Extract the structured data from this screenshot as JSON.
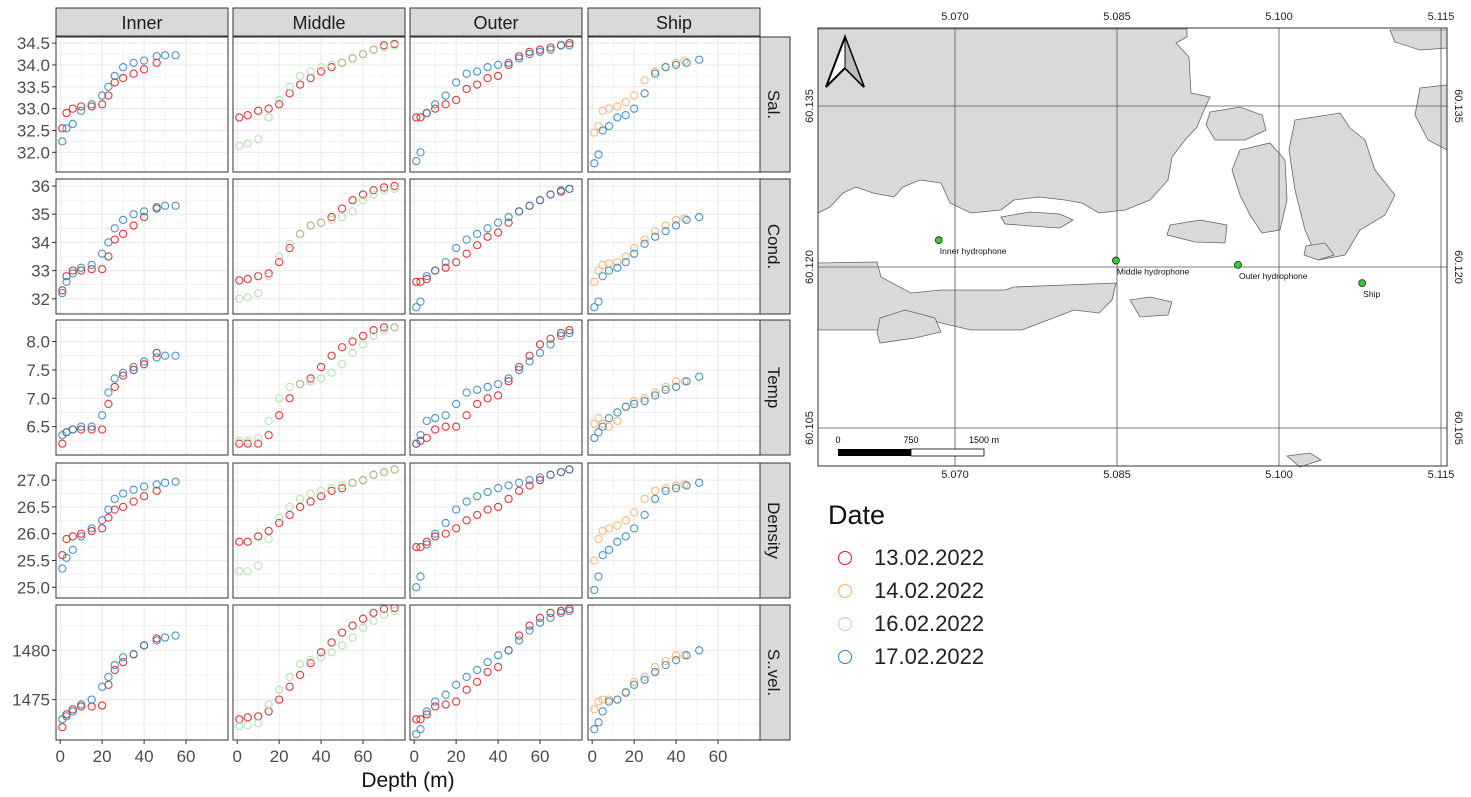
{
  "chart_data": [
    {
      "type": "scatter",
      "xlabel": "Depth (m)",
      "xlim": [
        -2,
        80
      ],
      "xticks": [
        0,
        20,
        40,
        60
      ],
      "grid": true,
      "columns": [
        "Inner",
        "Middle",
        "Outer",
        "Ship"
      ],
      "rows": [
        {
          "key": "sal",
          "label": "Sal.",
          "ylim": [
            31.55,
            34.64
          ],
          "yticks": [
            "32.0",
            "32.5",
            "33.0",
            "33.5",
            "34.0",
            "34.5"
          ]
        },
        {
          "key": "cond",
          "label": "Cond.",
          "ylim": [
            31.46,
            36.25
          ],
          "yticks": [
            "32",
            "33",
            "34",
            "35",
            "36"
          ]
        },
        {
          "key": "temp",
          "label": "Temp",
          "ylim": [
            6.0,
            8.38
          ],
          "yticks": [
            "6.5",
            "7.0",
            "7.5",
            "8.0"
          ]
        },
        {
          "key": "density",
          "label": "Density",
          "ylim": [
            24.8,
            27.32
          ],
          "yticks": [
            "25.0",
            "25.5",
            "26.0",
            "26.5",
            "27.0"
          ]
        },
        {
          "key": "svel",
          "label": "S..vel.",
          "ylim": [
            1470.9,
            1484.6
          ],
          "yticks": [
            "1475",
            "1480"
          ]
        }
      ],
      "legend": {
        "title": "Date",
        "placement": "right",
        "entries": [
          {
            "label": "13.02.2022",
            "color": "#d7191c"
          },
          {
            "label": "14.02.2022",
            "color": "#fdae61"
          },
          {
            "label": "16.02.2022",
            "color": "#abdda4"
          },
          {
            "label": "17.02.2022",
            "color": "#2b83ba"
          }
        ]
      },
      "series": [
        {
          "column": "Inner",
          "date": "13.02.2022",
          "depth": [
            1,
            3,
            6,
            10,
            15,
            20,
            23,
            26,
            30,
            35,
            40,
            46
          ],
          "sal": [
            32.55,
            32.9,
            33.0,
            33.05,
            33.05,
            33.1,
            33.3,
            33.6,
            33.7,
            33.8,
            33.9,
            34.05
          ],
          "cond": [
            32.3,
            32.8,
            33.0,
            33.0,
            33.05,
            33.05,
            33.5,
            34.1,
            34.3,
            34.6,
            34.9,
            35.2
          ],
          "temp": [
            6.2,
            6.4,
            6.45,
            6.45,
            6.45,
            6.45,
            6.9,
            7.2,
            7.4,
            7.5,
            7.6,
            7.8
          ],
          "density": [
            25.6,
            25.9,
            25.95,
            26.0,
            26.05,
            26.1,
            26.3,
            26.45,
            26.5,
            26.6,
            26.7,
            26.8
          ],
          "svel": [
            1472.2,
            1473.5,
            1474.0,
            1474.3,
            1474.3,
            1474.4,
            1476.5,
            1478.0,
            1478.8,
            1479.6,
            1480.5,
            1481.2
          ]
        },
        {
          "column": "Inner",
          "date": "17.02.2022",
          "depth": [
            1,
            3,
            6,
            10,
            15,
            20,
            23,
            26,
            30,
            35,
            40,
            46,
            50,
            55
          ],
          "sal": [
            32.25,
            32.55,
            32.65,
            32.95,
            33.1,
            33.3,
            33.5,
            33.75,
            33.95,
            34.05,
            34.1,
            34.2,
            34.22,
            34.22
          ],
          "cond": [
            32.2,
            32.6,
            32.9,
            33.1,
            33.2,
            33.6,
            34.0,
            34.5,
            34.8,
            35.0,
            35.1,
            35.25,
            35.3,
            35.3
          ],
          "temp": [
            6.35,
            6.4,
            6.45,
            6.5,
            6.5,
            6.7,
            7.1,
            7.35,
            7.45,
            7.55,
            7.65,
            7.72,
            7.75,
            7.75
          ],
          "density": [
            25.35,
            25.55,
            25.7,
            25.95,
            26.1,
            26.25,
            26.45,
            26.65,
            26.75,
            26.82,
            26.88,
            26.92,
            26.95,
            26.97
          ],
          "svel": [
            1473.0,
            1473.3,
            1473.8,
            1474.5,
            1475.0,
            1476.3,
            1477.3,
            1478.5,
            1479.3,
            1479.6,
            1480.5,
            1481.0,
            1481.3,
            1481.5
          ]
        },
        {
          "column": "Middle",
          "date": "13.02.2022",
          "depth": [
            1,
            5,
            10,
            15,
            20,
            25,
            30,
            35,
            40,
            45,
            50,
            55,
            60,
            65,
            70,
            75
          ],
          "sal": [
            32.8,
            32.85,
            32.95,
            33.0,
            33.1,
            33.35,
            33.55,
            33.7,
            33.85,
            33.95,
            34.05,
            34.15,
            34.25,
            34.35,
            34.45,
            34.48
          ],
          "cond": [
            32.65,
            32.7,
            32.8,
            32.9,
            33.3,
            33.8,
            34.3,
            34.6,
            34.7,
            34.9,
            35.2,
            35.5,
            35.7,
            35.85,
            35.95,
            36.0
          ],
          "temp": [
            6.2,
            6.2,
            6.2,
            6.35,
            6.7,
            7.0,
            7.25,
            7.35,
            7.55,
            7.75,
            7.9,
            8.0,
            8.1,
            8.2,
            8.25,
            8.25
          ],
          "density": [
            25.85,
            25.85,
            25.95,
            26.05,
            26.2,
            26.35,
            26.5,
            26.6,
            26.7,
            26.8,
            26.85,
            26.95,
            27.0,
            27.1,
            27.15,
            27.2
          ],
          "svel": [
            1473.0,
            1473.2,
            1473.3,
            1473.8,
            1475.0,
            1476.3,
            1477.5,
            1478.7,
            1479.8,
            1480.8,
            1481.8,
            1482.5,
            1483.2,
            1483.8,
            1484.2,
            1484.3
          ]
        },
        {
          "column": "Middle",
          "date": "16.02.2022",
          "depth": [
            1,
            5,
            10,
            15,
            20,
            25,
            30,
            35,
            40,
            45,
            50,
            55,
            60,
            65,
            70,
            75
          ],
          "sal": [
            32.15,
            32.2,
            32.3,
            32.8,
            33.2,
            33.5,
            33.75,
            33.85,
            33.95,
            34.0,
            34.05,
            34.15,
            34.25,
            34.35,
            34.4,
            34.45
          ],
          "cond": [
            32.0,
            32.05,
            32.2,
            32.8,
            33.5,
            33.95,
            34.3,
            34.6,
            34.7,
            34.8,
            34.9,
            35.1,
            35.5,
            35.7,
            35.85,
            35.9
          ],
          "temp": [
            6.25,
            6.25,
            6.3,
            6.6,
            7.0,
            7.2,
            7.25,
            7.3,
            7.35,
            7.45,
            7.6,
            7.8,
            7.95,
            8.1,
            8.2,
            8.25
          ],
          "density": [
            25.3,
            25.3,
            25.4,
            25.9,
            26.3,
            26.5,
            26.65,
            26.75,
            26.8,
            26.85,
            26.9,
            26.95,
            27.0,
            27.1,
            27.15,
            27.2
          ],
          "svel": [
            1472.3,
            1472.4,
            1472.6,
            1474.5,
            1476.0,
            1477.3,
            1478.6,
            1479.0,
            1479.3,
            1479.8,
            1480.5,
            1481.3,
            1482.3,
            1483.0,
            1483.6,
            1484.0
          ]
        },
        {
          "column": "Outer",
          "date": "13.02.2022",
          "depth": [
            1,
            3,
            6,
            10,
            15,
            20,
            25,
            30,
            35,
            40,
            45,
            50,
            55,
            60,
            65,
            70,
            74
          ],
          "sal": [
            32.8,
            32.8,
            32.9,
            33.0,
            33.1,
            33.2,
            33.45,
            33.55,
            33.7,
            33.75,
            34.0,
            34.2,
            34.3,
            34.35,
            34.4,
            34.45,
            34.5
          ],
          "cond": [
            32.6,
            32.6,
            32.7,
            33.0,
            33.1,
            33.3,
            33.6,
            33.9,
            34.2,
            34.35,
            34.7,
            35.1,
            35.3,
            35.5,
            35.7,
            35.8,
            35.9
          ],
          "temp": [
            6.2,
            6.25,
            6.3,
            6.45,
            6.5,
            6.5,
            6.7,
            6.9,
            7.0,
            7.05,
            7.3,
            7.55,
            7.75,
            7.95,
            8.05,
            8.15,
            8.2
          ],
          "density": [
            25.75,
            25.75,
            25.85,
            25.95,
            26.0,
            26.1,
            26.25,
            26.35,
            26.45,
            26.5,
            26.65,
            26.8,
            26.9,
            27.0,
            27.1,
            27.15,
            27.2
          ],
          "svel": [
            1473.0,
            1473.0,
            1473.5,
            1474.3,
            1474.5,
            1474.8,
            1476.0,
            1476.8,
            1477.8,
            1478.3,
            1480.0,
            1481.5,
            1482.5,
            1483.3,
            1483.8,
            1484.0,
            1484.2
          ]
        },
        {
          "column": "Outer",
          "date": "17.02.2022",
          "depth": [
            1,
            3,
            6,
            10,
            15,
            20,
            25,
            30,
            35,
            40,
            45,
            50,
            55,
            60,
            65,
            70,
            74
          ],
          "sal": [
            31.8,
            32.0,
            32.9,
            33.1,
            33.3,
            33.6,
            33.8,
            33.85,
            33.95,
            34.0,
            34.05,
            34.15,
            34.25,
            34.3,
            34.35,
            34.45,
            34.45
          ],
          "cond": [
            31.7,
            31.9,
            32.8,
            33.0,
            33.3,
            33.8,
            34.1,
            34.3,
            34.5,
            34.7,
            34.9,
            35.1,
            35.3,
            35.5,
            35.7,
            35.85,
            35.9
          ],
          "temp": [
            6.2,
            6.35,
            6.6,
            6.65,
            6.7,
            6.9,
            7.1,
            7.15,
            7.2,
            7.25,
            7.35,
            7.5,
            7.65,
            7.8,
            7.95,
            8.1,
            8.15
          ],
          "density": [
            25.0,
            25.2,
            25.8,
            26.0,
            26.2,
            26.45,
            26.6,
            26.7,
            26.78,
            26.85,
            26.9,
            26.95,
            27.0,
            27.05,
            27.1,
            27.15,
            27.2
          ],
          "svel": [
            1471.5,
            1472.0,
            1473.8,
            1474.8,
            1475.5,
            1476.5,
            1477.3,
            1478.0,
            1478.8,
            1479.5,
            1480.0,
            1481.0,
            1482.0,
            1482.8,
            1483.3,
            1483.8,
            1484.0
          ]
        },
        {
          "column": "Ship",
          "date": "14.02.2022",
          "depth": [
            1,
            3,
            5,
            8,
            12,
            16,
            20,
            25,
            30,
            35,
            40,
            44
          ],
          "sal": [
            32.45,
            32.6,
            32.95,
            33.0,
            33.05,
            33.15,
            33.3,
            33.65,
            33.85,
            33.95,
            34.05,
            34.1
          ],
          "cond": [
            32.6,
            33.0,
            33.2,
            33.25,
            33.3,
            33.5,
            33.8,
            34.1,
            34.4,
            34.6,
            34.8,
            34.85
          ],
          "temp": [
            6.55,
            6.65,
            6.55,
            6.5,
            6.6,
            6.85,
            6.95,
            7.0,
            7.1,
            7.2,
            7.3,
            7.3
          ],
          "density": [
            25.5,
            25.9,
            26.05,
            26.1,
            26.15,
            26.25,
            26.4,
            26.65,
            26.8,
            26.85,
            26.9,
            26.92
          ],
          "svel": [
            1474.0,
            1474.8,
            1475.0,
            1475.0,
            1475.0,
            1475.8,
            1476.8,
            1477.3,
            1478.3,
            1478.9,
            1479.5,
            1479.5
          ]
        },
        {
          "column": "Ship",
          "date": "17.02.2022",
          "depth": [
            1,
            3,
            5,
            8,
            12,
            16,
            20,
            25,
            30,
            35,
            40,
            45,
            51
          ],
          "sal": [
            31.75,
            31.95,
            32.5,
            32.6,
            32.8,
            32.85,
            33.0,
            33.35,
            33.8,
            33.95,
            34.0,
            34.05,
            34.12
          ],
          "cond": [
            31.7,
            31.9,
            32.8,
            33.0,
            33.1,
            33.3,
            33.6,
            33.95,
            34.2,
            34.4,
            34.6,
            34.8,
            34.9
          ],
          "temp": [
            6.3,
            6.4,
            6.5,
            6.65,
            6.75,
            6.85,
            6.9,
            6.95,
            7.05,
            7.15,
            7.2,
            7.3,
            7.38
          ],
          "density": [
            24.95,
            25.2,
            25.6,
            25.7,
            25.85,
            25.95,
            26.1,
            26.35,
            26.65,
            26.8,
            26.85,
            26.9,
            26.95
          ],
          "svel": [
            1472.0,
            1472.7,
            1473.8,
            1474.8,
            1475.0,
            1475.7,
            1476.5,
            1477.0,
            1477.8,
            1478.5,
            1479.0,
            1479.5,
            1480.0
          ]
        }
      ]
    },
    {
      "type": "map",
      "x_ticks": [
        "5.070",
        "5.085",
        "5.100",
        "5.115"
      ],
      "y_ticks": [
        "60.135",
        "60.120",
        "60.105"
      ],
      "land_color": "#d9d9d9",
      "point_color": "#33cc33",
      "points": [
        {
          "label": "Inner hydrophone",
          "lon": 5.0685,
          "lat": 60.1225
        },
        {
          "label": "Middle hydrophone",
          "lon": 5.0849,
          "lat": 60.1206
        },
        {
          "label": "Outer hydrophone",
          "lon": 5.0962,
          "lat": 60.1202
        },
        {
          "label": "Ship",
          "lon": 5.1077,
          "lat": 60.1185
        }
      ],
      "scale_bar": [
        "0",
        "750",
        "1500 m"
      ],
      "north_arrow": "north-arrow-icon"
    }
  ]
}
